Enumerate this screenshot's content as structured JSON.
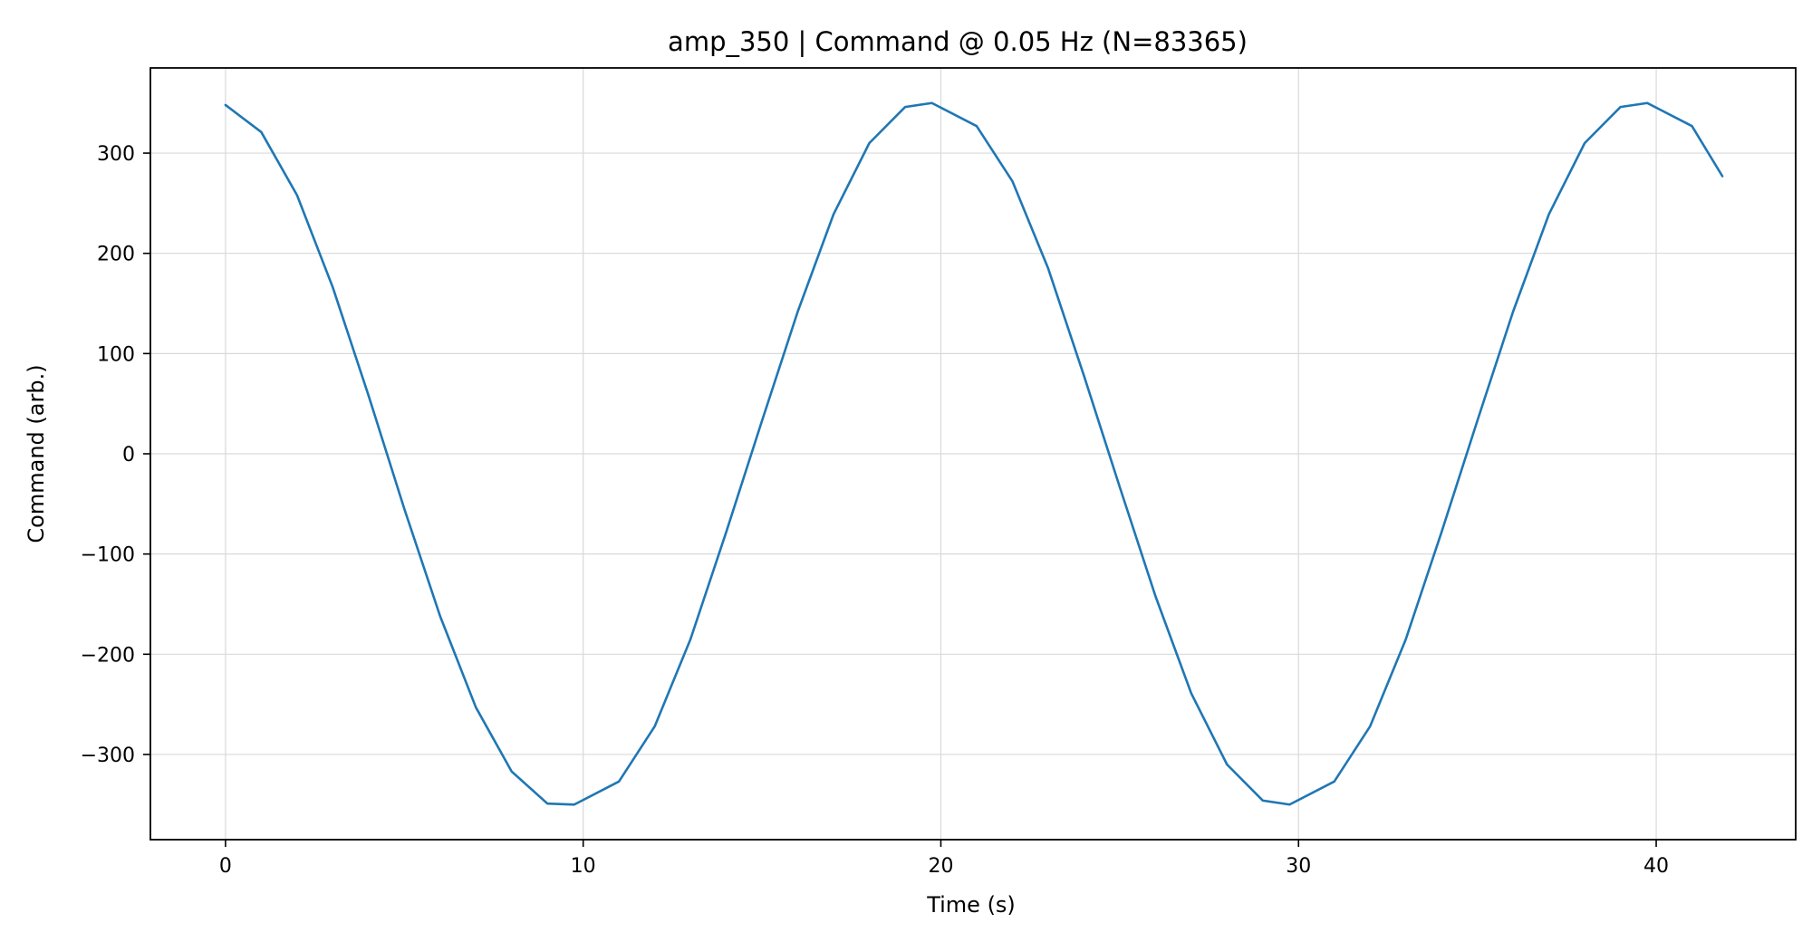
{
  "chart_data": {
    "type": "line",
    "title": "amp_350 | Command @ 0.05 Hz  (N=83365)",
    "xlabel": "Time (s)",
    "ylabel": "Command (arb.)",
    "xlim": [
      -2.1,
      43.9
    ],
    "ylim": [
      -385,
      385
    ],
    "xticks": [
      0,
      10,
      20,
      30,
      40
    ],
    "yticks": [
      -300,
      -200,
      -100,
      0,
      100,
      200,
      300
    ],
    "xtick_labels": [
      "0",
      "10",
      "20",
      "30",
      "40"
    ],
    "ytick_labels": [
      "−300",
      "−200",
      "−100",
      "0",
      "100",
      "200",
      "300"
    ],
    "grid": true,
    "colors": {
      "line": "#1f77b4",
      "grid": "#d9d9d9",
      "axes": "#000000"
    },
    "series": [
      {
        "x": [
          0.0,
          1.0,
          2.0,
          3.0,
          4.0,
          5.0,
          6.0,
          7.0,
          8.0,
          9.0,
          9.75,
          11.0,
          12.0,
          13.0,
          14.0,
          15.0,
          16.0,
          17.0,
          18.0,
          19.0,
          19.75,
          21.0,
          22.0,
          23.0,
          24.0,
          25.0,
          26.0,
          27.0,
          28.0,
          29.0,
          29.75,
          31.0,
          32.0,
          33.0,
          34.0,
          35.0,
          36.0,
          37.0,
          38.0,
          39.0,
          39.75,
          41.0,
          41.85
        ],
        "y": [
          348,
          321,
          258,
          166,
          58,
          -55,
          -162,
          -253,
          -317,
          -349,
          -350,
          -327,
          -272,
          -185,
          -78,
          33,
          142,
          239,
          310,
          346,
          350,
          327,
          272,
          185,
          78,
          -33,
          -142,
          -239,
          -310,
          -346,
          -350,
          -327,
          -272,
          -185,
          -78,
          33,
          142,
          239,
          310,
          346,
          350,
          327,
          277
        ]
      }
    ]
  }
}
